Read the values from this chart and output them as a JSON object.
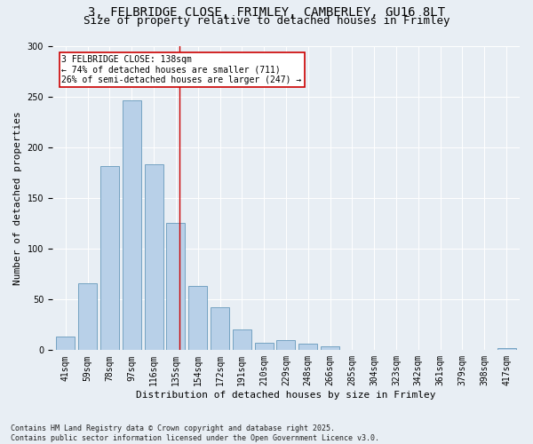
{
  "title_line1": "3, FELBRIDGE CLOSE, FRIMLEY, CAMBERLEY, GU16 8LT",
  "title_line2": "Size of property relative to detached houses in Frimley",
  "xlabel": "Distribution of detached houses by size in Frimley",
  "ylabel": "Number of detached properties",
  "categories": [
    "41sqm",
    "59sqm",
    "78sqm",
    "97sqm",
    "116sqm",
    "135sqm",
    "154sqm",
    "172sqm",
    "191sqm",
    "210sqm",
    "229sqm",
    "248sqm",
    "266sqm",
    "285sqm",
    "304sqm",
    "323sqm",
    "342sqm",
    "361sqm",
    "379sqm",
    "398sqm",
    "417sqm"
  ],
  "values": [
    13,
    66,
    181,
    246,
    183,
    125,
    63,
    42,
    20,
    7,
    10,
    6,
    4,
    0,
    0,
    0,
    0,
    0,
    0,
    0,
    2
  ],
  "bar_color": "#b8d0e8",
  "bar_edge_color": "#6699bb",
  "annotation_text": "3 FELBRIDGE CLOSE: 138sqm\n← 74% of detached houses are smaller (711)\n26% of semi-detached houses are larger (247) →",
  "annotation_box_color": "#ffffff",
  "annotation_box_edge": "#cc0000",
  "vline_color": "#cc0000",
  "background_color": "#e8eef4",
  "plot_bg_color": "#e8eef4",
  "ylim": [
    0,
    300
  ],
  "footer": "Contains HM Land Registry data © Crown copyright and database right 2025.\nContains public sector information licensed under the Open Government Licence v3.0.",
  "title_fontsize": 10,
  "subtitle_fontsize": 9,
  "tick_fontsize": 7,
  "ylabel_fontsize": 8,
  "xlabel_fontsize": 8,
  "footer_fontsize": 6,
  "vline_x": 5.17
}
